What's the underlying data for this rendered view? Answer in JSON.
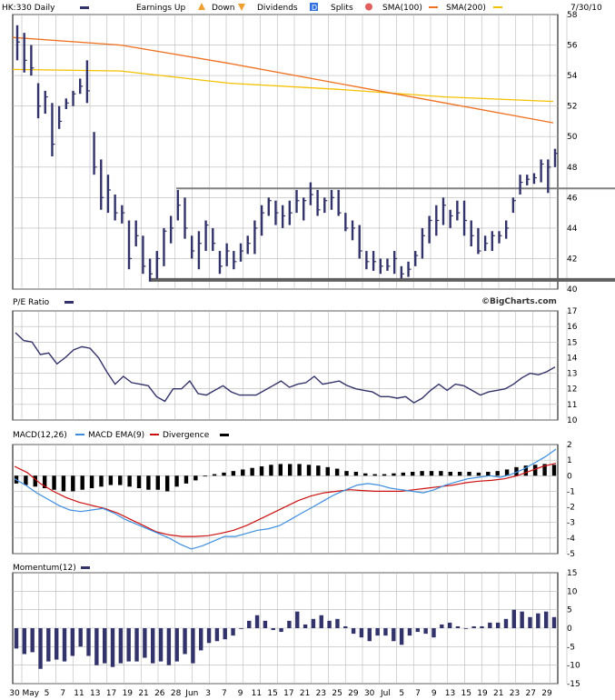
{
  "header": {
    "symbol": "HK:330 Daily",
    "earnings": "Earnings Up",
    "down": "Down",
    "dividends": "Dividends",
    "dividends_glyph": "D",
    "splits": "Splits",
    "sma100": "SMA(100)",
    "sma200": "SMA(200)",
    "date": "7/30/10"
  },
  "credit": "©BigCharts.com",
  "colors": {
    "price_bar": "#33336b",
    "sma100": "#f5c000",
    "sma200": "#f07020",
    "macd": "#3c8fe0",
    "macd_ema": "#cc1010",
    "grid": "#b8b8b8",
    "resistance": "#808080",
    "support": "#606060"
  },
  "chart_data": [
    {
      "type": "ohlc",
      "title": "HK:330 Daily",
      "ylim": [
        40,
        58
      ],
      "yticks": [
        "58",
        "56",
        "54",
        "52",
        "50",
        "48",
        "46",
        "44",
        "42",
        "40"
      ],
      "ohlc": [
        [
          57.3,
          55.0,
          56.2
        ],
        [
          56.8,
          54.2,
          55.0
        ],
        [
          56.0,
          54.0,
          54.5
        ],
        [
          53.5,
          51.2,
          52.0
        ],
        [
          53.0,
          51.5,
          52.6
        ],
        [
          52.2,
          48.7,
          49.5
        ],
        [
          52.0,
          50.5,
          51.0
        ],
        [
          52.5,
          51.8,
          52.2
        ],
        [
          53.0,
          52.0,
          52.8
        ],
        [
          53.8,
          52.8,
          53.3
        ],
        [
          55.0,
          52.2,
          53.0
        ],
        [
          50.3,
          47.5,
          48.0
        ],
        [
          48.5,
          45.2,
          46.0
        ],
        [
          47.5,
          45.0,
          46.5
        ],
        [
          46.2,
          44.5,
          45.0
        ],
        [
          45.5,
          44.3,
          45.0
        ],
        [
          44.5,
          41.3,
          42.0
        ],
        [
          44.5,
          42.8,
          43.5
        ],
        [
          43.5,
          41.0,
          41.5
        ],
        [
          42.0,
          40.5,
          41.0
        ],
        [
          42.5,
          40.7,
          42.0
        ],
        [
          44.0,
          41.5,
          43.8
        ],
        [
          44.8,
          43.0,
          44.0
        ],
        [
          46.5,
          44.5,
          45.5
        ],
        [
          46.0,
          43.3,
          44.0
        ],
        [
          43.5,
          42.0,
          42.5
        ],
        [
          43.8,
          41.3,
          43.0
        ],
        [
          44.5,
          42.5,
          44.2
        ],
        [
          44.0,
          42.5,
          43.0
        ],
        [
          42.5,
          41.0,
          41.5
        ],
        [
          43.0,
          41.5,
          42.5
        ],
        [
          42.5,
          41.3,
          41.8
        ],
        [
          43.0,
          41.8,
          42.5
        ],
        [
          43.5,
          42.3,
          43.0
        ],
        [
          44.5,
          42.3,
          44.0
        ],
        [
          45.5,
          43.5,
          45.0
        ],
        [
          46.0,
          44.8,
          45.8
        ],
        [
          45.8,
          44.2,
          45.0
        ],
        [
          45.5,
          44.0,
          44.8
        ],
        [
          45.8,
          44.2,
          45.0
        ],
        [
          46.5,
          45.0,
          45.8
        ],
        [
          46.0,
          44.5,
          45.8
        ],
        [
          47.0,
          45.5,
          46.2
        ],
        [
          46.5,
          44.8,
          45.2
        ],
        [
          46.0,
          45.0,
          45.8
        ],
        [
          46.5,
          45.2,
          46.0
        ],
        [
          46.5,
          44.8,
          45.0
        ],
        [
          45.0,
          43.8,
          44.0
        ],
        [
          44.5,
          43.2,
          44.0
        ],
        [
          44.2,
          42.0,
          42.5
        ],
        [
          42.5,
          41.3,
          41.8
        ],
        [
          42.5,
          41.2,
          41.8
        ],
        [
          42.0,
          41.0,
          41.5
        ],
        [
          42.0,
          41.2,
          41.5
        ],
        [
          42.5,
          41.0,
          42.0
        ],
        [
          41.5,
          40.7,
          41.0
        ],
        [
          41.8,
          40.8,
          41.3
        ],
        [
          42.5,
          41.5,
          42.2
        ],
        [
          44.0,
          42.0,
          43.5
        ],
        [
          44.8,
          43.0,
          44.5
        ],
        [
          45.5,
          43.5,
          44.5
        ],
        [
          46.0,
          44.2,
          45.5
        ],
        [
          45.2,
          44.0,
          44.8
        ],
        [
          45.8,
          44.5,
          45.0
        ],
        [
          45.8,
          43.5,
          44.5
        ],
        [
          44.5,
          42.8,
          43.5
        ],
        [
          44.0,
          42.3,
          42.5
        ],
        [
          43.5,
          42.5,
          43.0
        ],
        [
          43.8,
          42.5,
          43.5
        ],
        [
          43.8,
          43.0,
          43.5
        ],
        [
          44.5,
          43.3,
          44.0
        ],
        [
          46.0,
          45.0,
          45.8
        ],
        [
          47.5,
          46.2,
          47.0
        ],
        [
          47.5,
          46.8,
          47.2
        ],
        [
          47.6,
          46.9,
          47.3
        ],
        [
          48.5,
          47.0,
          48.2
        ],
        [
          48.5,
          46.3,
          48.0
        ],
        [
          49.2,
          48.0,
          48.9
        ]
      ],
      "sma100": [
        [
          0,
          54.4
        ],
        [
          0.2,
          54.3
        ],
        [
          0.4,
          53.5
        ],
        [
          0.6,
          53.1
        ],
        [
          0.8,
          52.6
        ],
        [
          1,
          52.3
        ]
      ],
      "sma200": [
        [
          0,
          56.5
        ],
        [
          0.2,
          56.0
        ],
        [
          0.4,
          54.8
        ],
        [
          0.6,
          53.5
        ],
        [
          0.8,
          52.2
        ],
        [
          1,
          50.9
        ]
      ],
      "resistance": {
        "y": 46.6,
        "from": 0.3
      },
      "support": {
        "y": 40.6,
        "from": 0.25
      },
      "xlabels": [
        "30",
        "May",
        "5",
        "7",
        "11",
        "13",
        "17",
        "19",
        "21",
        "26",
        "28",
        "Jun",
        "3",
        "7",
        "9",
        "11",
        "15",
        "17",
        "21",
        "23",
        "25",
        "29",
        "30",
        "Jul",
        "5",
        "7",
        "9",
        "13",
        "15",
        "19",
        "21",
        "23",
        "27",
        "29"
      ]
    },
    {
      "type": "line",
      "title": "P/E Ratio",
      "ylim": [
        10,
        17
      ],
      "yticks": [
        "17",
        "16",
        "15",
        "14",
        "13",
        "12",
        "11",
        "10"
      ],
      "values": [
        15.6,
        15.1,
        15.0,
        14.2,
        14.3,
        13.6,
        14.0,
        14.5,
        14.7,
        14.6,
        14.0,
        13.1,
        12.3,
        12.8,
        12.4,
        12.3,
        12.2,
        11.5,
        11.2,
        12.0,
        12.0,
        12.5,
        11.7,
        11.6,
        11.9,
        12.2,
        11.8,
        11.6,
        11.6,
        11.6,
        11.9,
        12.2,
        12.5,
        12.1,
        12.3,
        12.4,
        12.8,
        12.3,
        12.4,
        12.5,
        12.2,
        12.0,
        11.9,
        11.8,
        11.5,
        11.5,
        11.4,
        11.5,
        11.1,
        11.4,
        11.9,
        12.3,
        11.9,
        12.3,
        12.2,
        11.9,
        11.6,
        11.8,
        11.9,
        12.0,
        12.3,
        12.7,
        13.0,
        12.9,
        13.1,
        13.4
      ]
    },
    {
      "type": "bar+line",
      "title": "MACD(12,26)",
      "series_labels": [
        "MACD EMA(9)",
        "Divergence"
      ],
      "ylim": [
        -5,
        2
      ],
      "yticks": [
        "2",
        "1",
        "0",
        "-1",
        "-2",
        "-3",
        "-4",
        "-5"
      ],
      "macd": [
        -0.2,
        -0.6,
        -1.1,
        -1.5,
        -1.9,
        -2.2,
        -2.3,
        -2.2,
        -2.1,
        -2.4,
        -2.8,
        -3.1,
        -3.4,
        -3.7,
        -4.0,
        -4.4,
        -4.7,
        -4.5,
        -4.2,
        -3.9,
        -3.9,
        -3.7,
        -3.5,
        -3.4,
        -3.2,
        -2.8,
        -2.4,
        -2.0,
        -1.6,
        -1.2,
        -0.9,
        -0.6,
        -0.5,
        -0.6,
        -0.8,
        -0.9,
        -1.0,
        -1.1,
        -0.9,
        -0.6,
        -0.4,
        -0.2,
        -0.1,
        0.0,
        -0.1,
        0.1,
        0.4,
        0.8,
        1.2,
        1.7
      ],
      "ema": [
        0.6,
        0.2,
        -0.5,
        -1.0,
        -1.4,
        -1.7,
        -1.9,
        -2.1,
        -2.4,
        -2.8,
        -3.2,
        -3.6,
        -3.8,
        -3.9,
        -3.9,
        -3.85,
        -3.7,
        -3.5,
        -3.2,
        -2.8,
        -2.4,
        -2.0,
        -1.6,
        -1.3,
        -1.1,
        -1.0,
        -0.9,
        -0.95,
        -1.0,
        -1.0,
        -1.0,
        -0.9,
        -0.8,
        -0.7,
        -0.6,
        -0.45,
        -0.35,
        -0.3,
        -0.2,
        0.0,
        0.3,
        0.6,
        0.8
      ],
      "divergence": [
        -0.5,
        -0.6,
        -0.7,
        -0.8,
        -0.9,
        -1.0,
        -1.0,
        -0.9,
        -0.8,
        -0.7,
        -0.6,
        -0.6,
        -0.7,
        -0.8,
        -0.9,
        -0.9,
        -1.0,
        -0.7,
        -0.5,
        -0.3,
        0.0,
        0.1,
        0.2,
        0.3,
        0.4,
        0.5,
        0.6,
        0.7,
        0.75,
        0.75,
        0.75,
        0.7,
        0.65,
        0.55,
        0.45,
        0.3,
        0.25,
        0.15,
        0.1,
        0.1,
        0.15,
        0.2,
        0.25,
        0.3,
        0.3,
        0.3,
        0.25,
        0.25,
        0.25,
        0.2,
        0.25,
        0.3,
        0.4,
        0.55,
        0.65,
        0.7,
        0.75,
        0.7
      ]
    },
    {
      "type": "bar",
      "title": "Momentum(12)",
      "ylim": [
        -15,
        15
      ],
      "yticks": [
        "15",
        "10",
        "5",
        "0",
        "-5",
        "-10",
        "-15"
      ],
      "values": [
        -5.5,
        -7.0,
        -6.5,
        -11.0,
        -9.0,
        -8.5,
        -9.0,
        -7.5,
        -5.0,
        -7.5,
        -10.0,
        -9.5,
        -10.5,
        -9.5,
        -9.0,
        -9.0,
        -8.0,
        -9.5,
        -9.0,
        -10.0,
        -9.0,
        -7.0,
        -9.5,
        -6.0,
        -4.0,
        -3.5,
        -3.0,
        -2.0,
        0.0,
        2.0,
        3.5,
        2.0,
        -0.5,
        -1.0,
        2.0,
        4.5,
        1.0,
        2.5,
        3.5,
        2.0,
        2.5,
        0.5,
        -1.5,
        -2.5,
        -3.5,
        -2.0,
        -2.0,
        -3.5,
        -4.5,
        -2.0,
        -1.0,
        -1.5,
        -2.5,
        1.0,
        1.5,
        0.5,
        0.0,
        0.5,
        0.5,
        1.5,
        1.5,
        2.5,
        5.0,
        4.5,
        3.0,
        4.0,
        4.5,
        3.0
      ]
    }
  ]
}
